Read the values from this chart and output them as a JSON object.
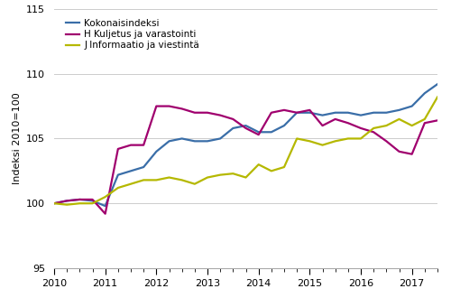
{
  "ylabel": "Indeksi 2010=100",
  "ylim": [
    95,
    115
  ],
  "yticks": [
    95,
    100,
    105,
    110,
    115
  ],
  "xtick_labels": [
    "2010",
    "2011",
    "2012",
    "2013",
    "2014",
    "2015",
    "2016",
    "2017"
  ],
  "xtick_positions": [
    0,
    4,
    8,
    12,
    16,
    20,
    24,
    28
  ],
  "colors": {
    "kokonaisindeksi": "#3A6EA8",
    "kuljetus": "#A0006E",
    "informaatio": "#B5B800"
  },
  "legend": [
    "Kokonaisindeksi",
    "H Kuljetus ja varastointi",
    "J Informaatio ja viestintä"
  ],
  "kokonaisindeksi": [
    100.0,
    100.2,
    100.3,
    100.2,
    99.8,
    102.2,
    102.5,
    102.8,
    104.0,
    104.8,
    105.0,
    104.8,
    104.8,
    105.0,
    105.8,
    106.0,
    105.5,
    105.5,
    106.0,
    107.0,
    107.0,
    106.8,
    107.0,
    107.0,
    106.8,
    107.0,
    107.0,
    107.2,
    107.5,
    108.5,
    109.2
  ],
  "kuljetus": [
    100.0,
    100.2,
    100.3,
    100.3,
    99.2,
    104.2,
    104.5,
    104.5,
    107.5,
    107.5,
    107.3,
    107.0,
    107.0,
    106.8,
    106.5,
    105.8,
    105.3,
    107.0,
    107.2,
    107.0,
    107.2,
    106.0,
    106.5,
    106.2,
    105.8,
    105.5,
    104.8,
    104.0,
    103.8,
    106.2,
    106.4
  ],
  "informaatio": [
    100.0,
    99.9,
    100.0,
    100.0,
    100.5,
    101.2,
    101.5,
    101.8,
    101.8,
    102.0,
    101.8,
    101.5,
    102.0,
    102.2,
    102.3,
    102.0,
    103.0,
    102.5,
    102.8,
    105.0,
    104.8,
    104.5,
    104.8,
    105.0,
    105.0,
    105.8,
    106.0,
    106.5,
    106.0,
    106.5,
    108.2
  ]
}
